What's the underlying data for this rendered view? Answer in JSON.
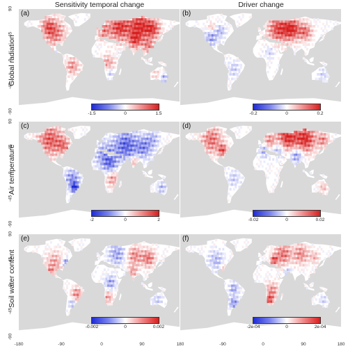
{
  "columns": [
    "Sensitivity temporal change",
    "Driver change"
  ],
  "rows": [
    "Global radiation",
    "Air temperature",
    "Soil water content"
  ],
  "panels": [
    {
      "label": "(a)",
      "cbar": [
        "-1.5",
        "0",
        "1.5"
      ]
    },
    {
      "label": "(b)",
      "cbar": [
        "-0.2",
        "0",
        "0.2"
      ]
    },
    {
      "label": "(c)",
      "cbar": [
        "-2",
        "0",
        "2"
      ]
    },
    {
      "label": "(d)",
      "cbar": [
        "-0.02",
        "0",
        "0.02"
      ]
    },
    {
      "label": "(e)",
      "cbar": [
        "-0.002",
        "0",
        "0.002"
      ]
    },
    {
      "label": "(f)",
      "cbar": [
        "-2e-04",
        "0",
        "2e-04"
      ]
    }
  ],
  "y_ticks": [
    "90",
    "45",
    "0",
    "-45",
    "-90"
  ],
  "x_ticks": [
    "-180",
    "-90",
    "0",
    "90",
    "180"
  ],
  "colors": {
    "negative": "#1f2bd6",
    "zero": "#ffffff",
    "positive": "#d81e1e",
    "ocean": "#d9d9d9"
  }
}
